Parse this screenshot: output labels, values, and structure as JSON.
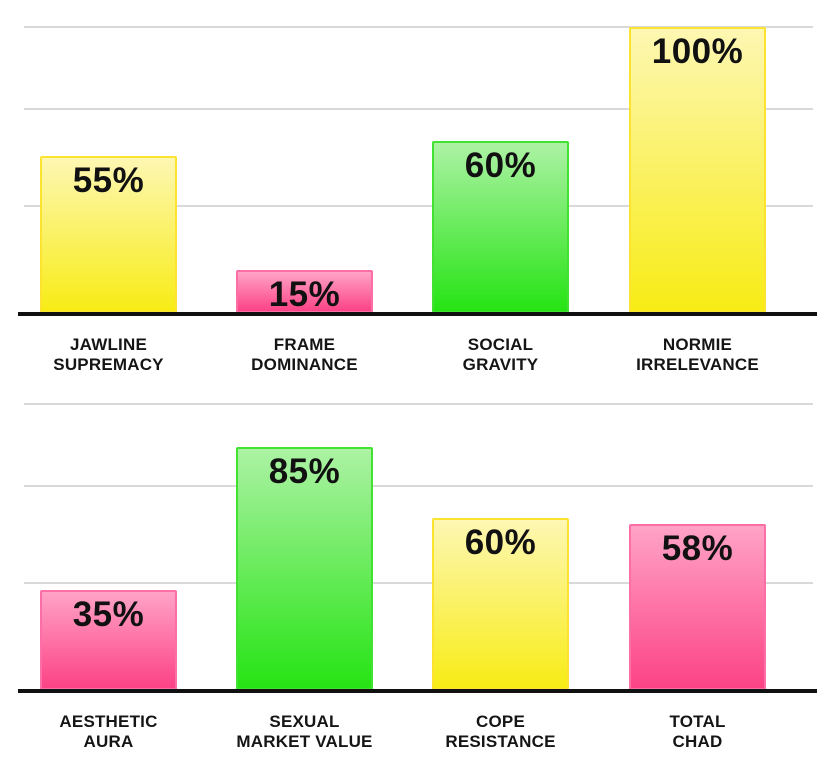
{
  "page": {
    "background": "#FFFFFF",
    "grid_color": "#D9D9D9",
    "axis_color": "#101010",
    "text_color": "#111111"
  },
  "palette": {
    "yellow": {
      "light": "#FDF7B3",
      "dark": "#F8EC15",
      "border": "#FBE330"
    },
    "pink": {
      "light": "#FFA3C6",
      "dark": "#FC4385",
      "border": "#FB6FA6"
    },
    "green": {
      "light": "#ACF2A4",
      "dark": "#26E414",
      "border": "#41E232"
    }
  },
  "chart_data": [
    {
      "type": "bar",
      "title": "",
      "categories": [
        "JAWLINE SUPREMACY",
        "FRAME DOMINANCE",
        "SOCIAL GRAVITY",
        "NORMIE IRRELEVANCE"
      ],
      "category_lines": [
        [
          "JAWLINE",
          "SUPREMACY"
        ],
        [
          "FRAME",
          "DOMINANCE"
        ],
        [
          "SOCIAL",
          "GRAVITY"
        ],
        [
          "NORMIE",
          "IRRELEVANCE"
        ]
      ],
      "values": [
        55,
        15,
        60,
        100
      ],
      "value_labels": [
        "55%",
        "15%",
        "60%",
        "100%"
      ],
      "bar_colors": [
        "yellow",
        "pink",
        "green",
        "yellow"
      ],
      "ylim": [
        0,
        100
      ],
      "gridlines_pct": [
        37.5,
        71.2,
        100
      ],
      "grid": "on",
      "legend": "none",
      "xlabel": "",
      "ylabel": ""
    },
    {
      "type": "bar",
      "title": "",
      "categories": [
        "AESTHETIC AURA",
        "SEXUAL MARKET VALUE",
        "COPE RESISTANCE",
        "TOTAL CHAD"
      ],
      "category_lines": [
        [
          "AESTHETIC",
          "AURA"
        ],
        [
          "SEXUAL",
          "MARKET VALUE"
        ],
        [
          "COPE",
          "RESISTANCE"
        ],
        [
          "TOTAL",
          "CHAD"
        ]
      ],
      "values": [
        35,
        85,
        60,
        58
      ],
      "value_labels": [
        "35%",
        "85%",
        "60%",
        "58%"
      ],
      "bar_colors": [
        "pink",
        "green",
        "yellow",
        "pink"
      ],
      "ylim": [
        0,
        100
      ],
      "gridlines_pct": [
        37.5,
        71.2,
        100
      ],
      "grid": "on",
      "legend": "none",
      "xlabel": "",
      "ylabel": ""
    }
  ]
}
